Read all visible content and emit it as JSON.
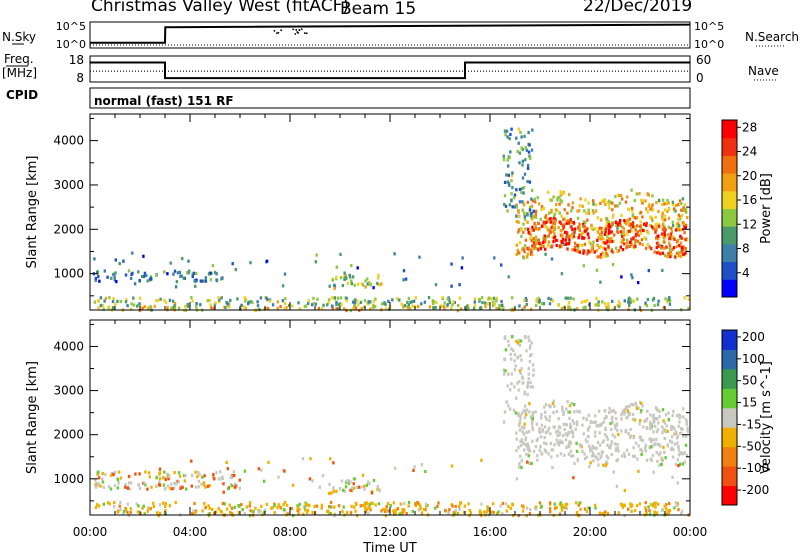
{
  "header": {
    "station": "Christmas Valley West (fitACF)",
    "beam": "Beam 15",
    "date": "22/Dec/2019",
    "cpid": "normal (fast) 151 RF"
  },
  "side_labels": {
    "nsky": "N.Sky",
    "freq_line1": "Freq.",
    "freq_line2": "[MHz]",
    "cpid": "CPID",
    "nsearch": "N.Search",
    "nave": "Nave"
  },
  "chart_data": [
    {
      "type": "line",
      "name": "noise",
      "y_left_ticks": [
        "10^5",
        "10^0"
      ],
      "y_right_ticks": [
        "10^5",
        "10^0"
      ],
      "series": [
        {
          "name": "N.Sky",
          "x": [
            0,
            3,
            3.01,
            24
          ],
          "values": [
            0.2,
            0.2,
            0.8,
            0.9
          ]
        },
        {
          "name": "N.Search",
          "x": [
            0,
            24
          ],
          "values": [
            0.3,
            0.3
          ]
        }
      ]
    },
    {
      "type": "line",
      "name": "frequency",
      "y_left_ticks": [
        "18",
        "8"
      ],
      "y_right_ticks": [
        "60",
        "0"
      ],
      "series": [
        {
          "name": "Freq",
          "x": [
            0,
            3,
            3,
            15,
            15,
            24
          ],
          "values": [
            15.5,
            15.5,
            9.5,
            9.5,
            15.5,
            15.5
          ]
        },
        {
          "name": "Nave",
          "x": [
            0,
            24
          ],
          "values": [
            25,
            25
          ]
        }
      ]
    },
    {
      "type": "heatmap",
      "name": "power",
      "xlabel": "",
      "ylabel": "Slant Range [km]",
      "xlim": [
        0,
        24
      ],
      "ylim": [
        180,
        4600
      ],
      "yticks": [
        1000,
        2000,
        3000,
        4000
      ],
      "colorbar_label": "Power [dB]",
      "colorbar_ticks": [
        "4",
        "8",
        "12",
        "16",
        "20",
        "24",
        "28"
      ],
      "colorbar_colors": [
        "#0000ff",
        "#1e50c8",
        "#3c7fa8",
        "#4a9a6a",
        "#8cc840",
        "#f0d020",
        "#f0a010",
        "#f07010",
        "#f03010",
        "#ff0000"
      ],
      "regions": [
        {
          "t0": 0.1,
          "t1": 24,
          "r0": 200,
          "r1": 300,
          "level": 0.55
        },
        {
          "t0": 0.1,
          "t1": 24,
          "r0": 300,
          "r1": 500,
          "level": 0.4
        },
        {
          "t0": 0.1,
          "t1": 5.3,
          "r0": 850,
          "r1": 1100,
          "level": 0.25
        },
        {
          "t0": 9.5,
          "t1": 11.7,
          "r0": 700,
          "r1": 1000,
          "level": 0.45
        },
        {
          "t0": 17,
          "t1": 23.9,
          "r0": 1500,
          "r1": 2800,
          "level": 0.6
        },
        {
          "t0": 17.3,
          "t1": 23.8,
          "r0": 1500,
          "r1": 2200,
          "level": 0.9
        }
      ]
    },
    {
      "type": "heatmap",
      "name": "velocity",
      "xlabel": "Time UT",
      "ylabel": "Slant Range [km]",
      "xlim": [
        0,
        24
      ],
      "ylim": [
        180,
        4600
      ],
      "xticks": [
        "00:00",
        "04:00",
        "08:00",
        "12:00",
        "16:00",
        "20:00",
        "00:00"
      ],
      "yticks": [
        1000,
        2000,
        3000,
        4000
      ],
      "colorbar_label": "Velocity [m s^-1]",
      "colorbar_ticks": [
        "-200",
        "-100",
        "-50",
        "-15",
        "15",
        "50",
        "100",
        "200"
      ],
      "colorbar_colors": [
        "#ff0000",
        "#f05010",
        "#f08010",
        "#f0b000",
        "#c8c8c0",
        "#66cc33",
        "#3c9a50",
        "#2a6aa8",
        "#1030d0"
      ],
      "regions": [
        {
          "t0": 0.1,
          "t1": 24,
          "r0": 200,
          "r1": 500,
          "level": "orange"
        },
        {
          "t0": 0.1,
          "t1": 6,
          "r0": 800,
          "r1": 1200,
          "level": "mixed"
        },
        {
          "t0": 9.5,
          "t1": 11.7,
          "r0": 700,
          "r1": 1000,
          "level": "mixed"
        },
        {
          "t0": 17,
          "t1": 23.9,
          "r0": 1400,
          "r1": 2700,
          "level": "gray"
        }
      ]
    }
  ]
}
